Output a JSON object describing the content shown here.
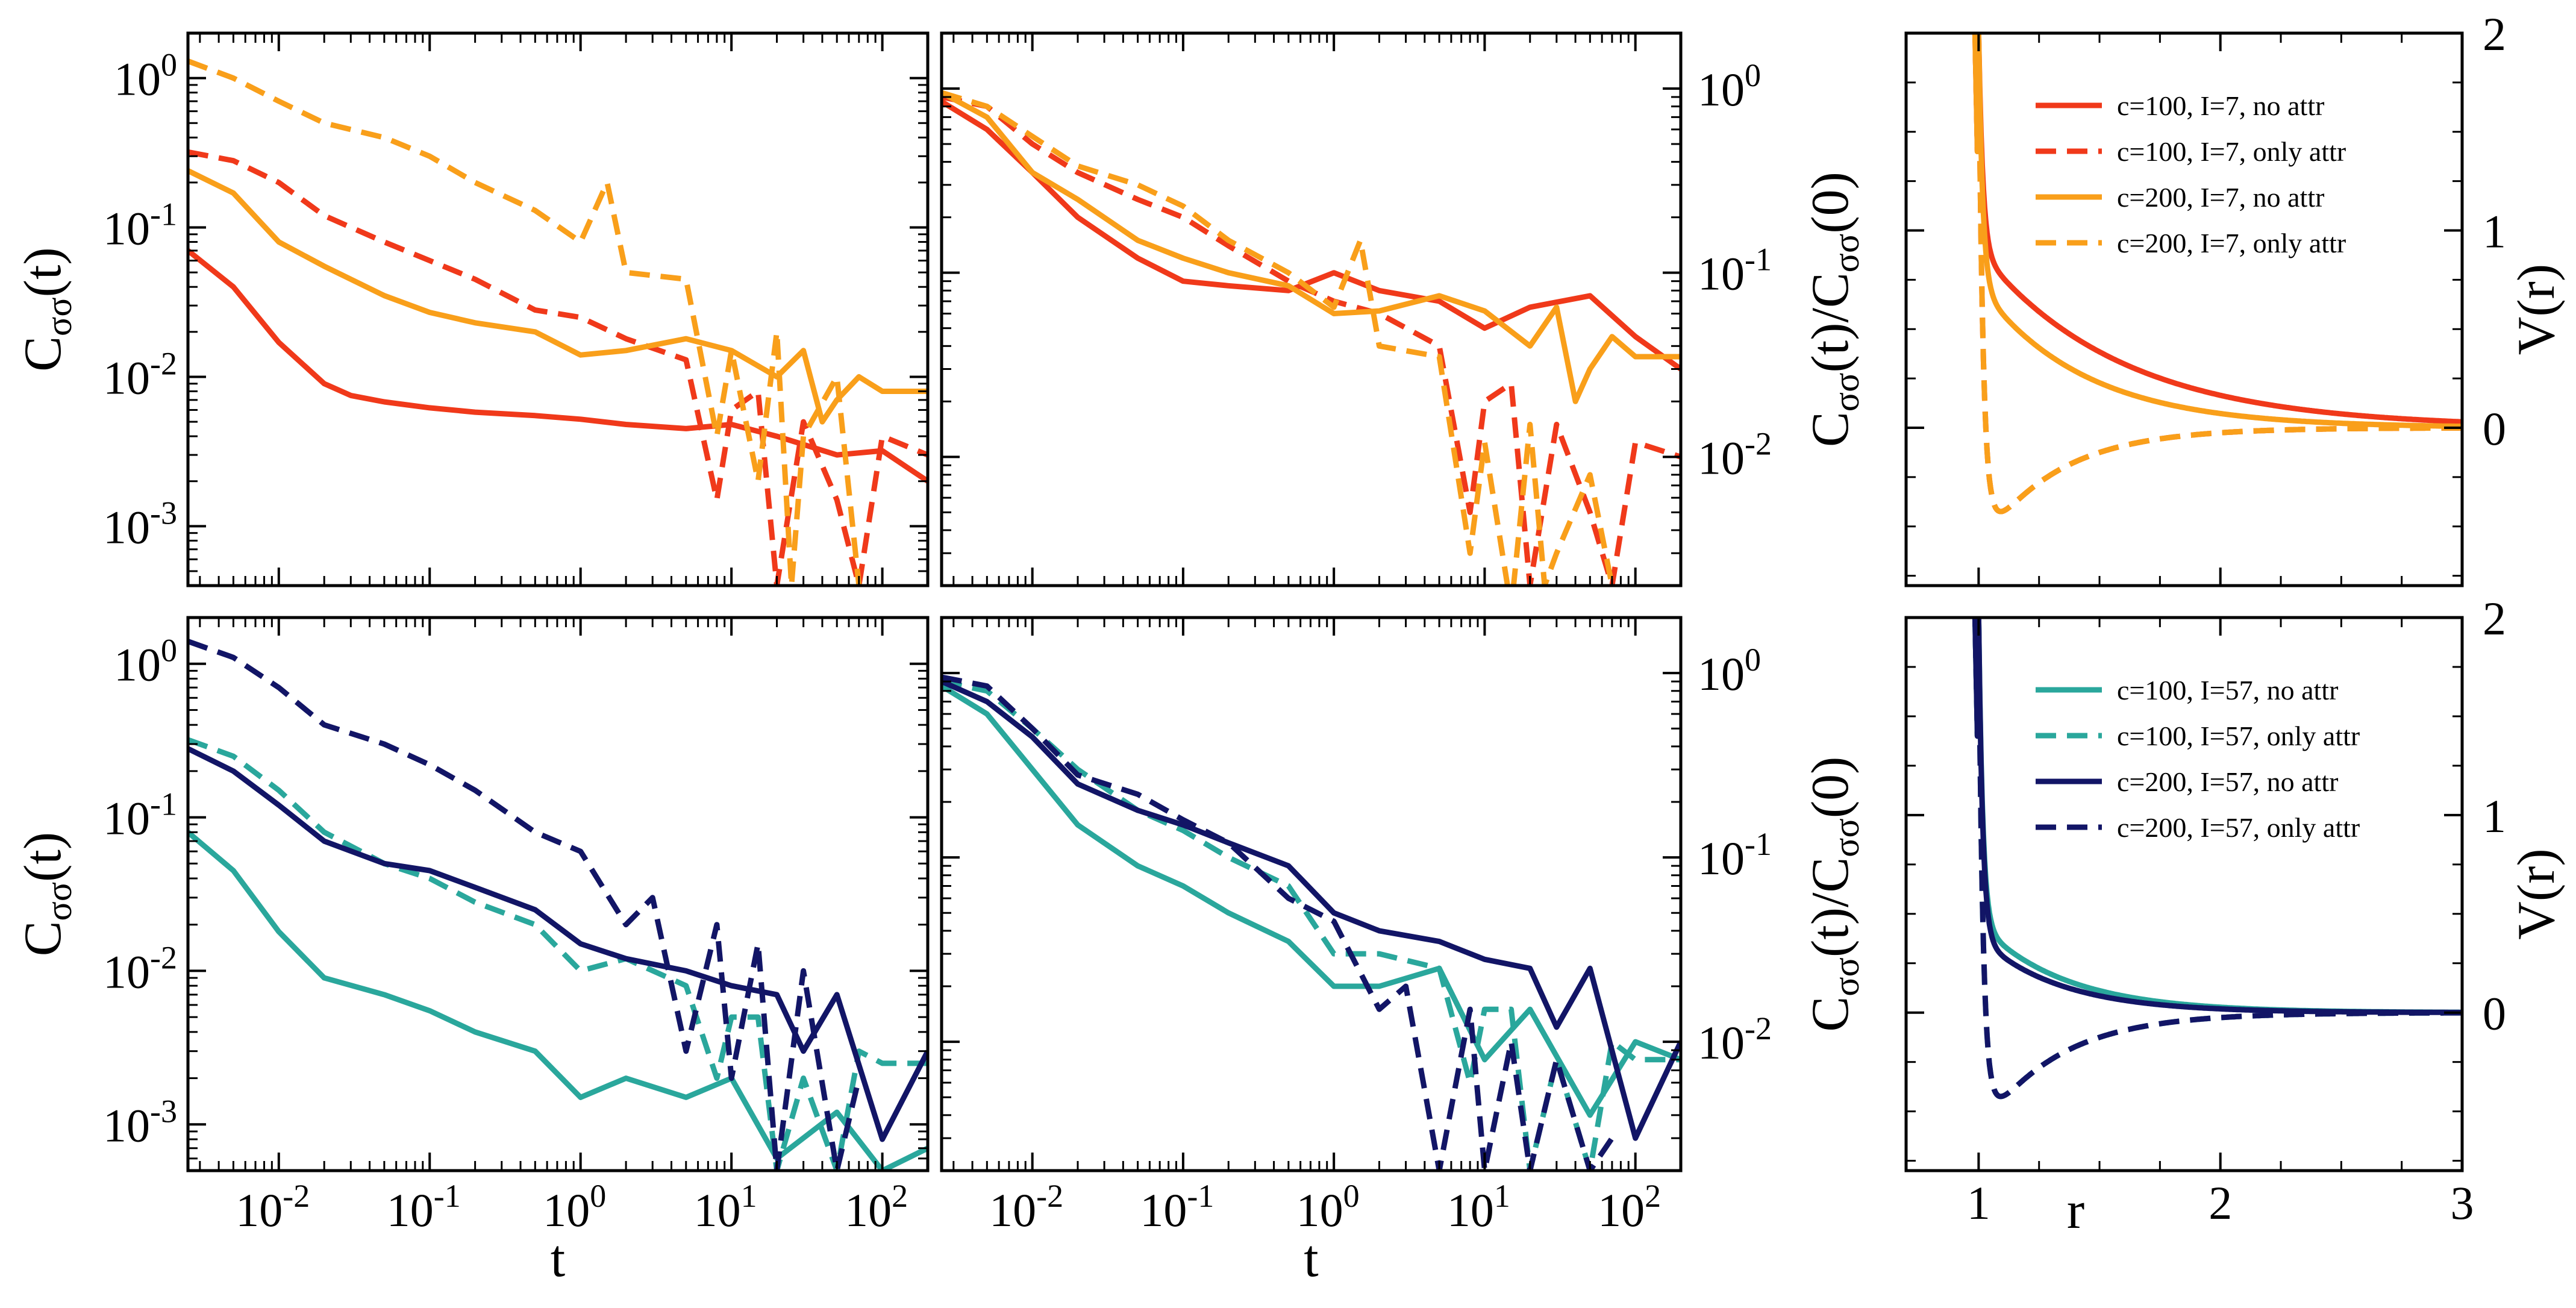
{
  "colors": {
    "c100_I7": "#f0391a",
    "c200_I7": "#f99f1a",
    "c100_I57": "#2aa79c",
    "c200_I57": "#121566"
  },
  "labels": {
    "corr_ylabel": "C",
    "corr_ylabel_sub": "σσ",
    "corr_ylabel_arg": "(t)",
    "norm_ylabel_arg": "(t)/C",
    "norm_ylabel_sub2": "σσ",
    "norm_ylabel_end": "(0)",
    "pot_ylabel": "V(r)",
    "t_xlabel": "t",
    "r_xlabel": "r"
  },
  "chart_data": [
    {
      "id": "top-left",
      "type": "line",
      "xscale": "log",
      "yscale": "log",
      "ylabel": "Cσσ(t)",
      "xlabel": "",
      "xlim": [
        0.0025,
        200
      ],
      "ylim": [
        0.0004,
        2
      ],
      "x_ticklabels": [],
      "y_ticklabels": [
        "10-3",
        "10-2",
        "10-1",
        "100"
      ],
      "series": [
        {
          "key": "c100_I7_noattr",
          "color": "c100_I7",
          "dash": false,
          "x": [
            0.0025,
            0.005,
            0.01,
            0.02,
            0.03,
            0.05,
            0.1,
            0.2,
            0.5,
            1,
            2,
            5,
            10,
            20,
            50,
            100,
            200
          ],
          "y": [
            0.07,
            0.04,
            0.017,
            0.009,
            0.0075,
            0.0068,
            0.0062,
            0.0058,
            0.0055,
            0.0052,
            0.0048,
            0.0045,
            0.0048,
            0.004,
            0.003,
            0.0032,
            0.002
          ]
        },
        {
          "key": "c100_I7_onlyattr",
          "color": "c100_I7",
          "dash": true,
          "x": [
            0.0025,
            0.005,
            0.01,
            0.02,
            0.05,
            0.1,
            0.2,
            0.5,
            1,
            2,
            5,
            8,
            10,
            15,
            20,
            30,
            50,
            70,
            100,
            200
          ],
          "y": [
            0.32,
            0.28,
            0.2,
            0.12,
            0.08,
            0.06,
            0.045,
            0.028,
            0.025,
            0.018,
            0.013,
            0.0015,
            0.006,
            0.008,
            0.0004,
            0.005,
            0.0015,
            0.0004,
            0.004,
            0.003
          ]
        },
        {
          "key": "c200_I7_noattr",
          "color": "c200_I7",
          "dash": false,
          "x": [
            0.0025,
            0.005,
            0.01,
            0.02,
            0.05,
            0.1,
            0.2,
            0.5,
            1,
            2,
            5,
            10,
            20,
            30,
            40,
            50,
            70,
            100,
            200
          ],
          "y": [
            0.24,
            0.17,
            0.08,
            0.055,
            0.035,
            0.027,
            0.023,
            0.02,
            0.014,
            0.015,
            0.018,
            0.015,
            0.01,
            0.015,
            0.005,
            0.007,
            0.01,
            0.008,
            0.008
          ]
        },
        {
          "key": "c200_I7_onlyattr",
          "color": "c200_I7",
          "dash": true,
          "x": [
            0.0025,
            0.005,
            0.01,
            0.02,
            0.05,
            0.1,
            0.2,
            0.5,
            1,
            1.5,
            2,
            5,
            8,
            10,
            15,
            20,
            25,
            30,
            50,
            70
          ],
          "y": [
            1.3,
            1.0,
            0.7,
            0.5,
            0.4,
            0.3,
            0.2,
            0.13,
            0.08,
            0.2,
            0.05,
            0.045,
            0.004,
            0.015,
            0.002,
            0.02,
            0.0004,
            0.004,
            0.01,
            0.0004
          ]
        }
      ]
    },
    {
      "id": "top-middle",
      "type": "line",
      "xscale": "log",
      "yscale": "log",
      "ylabel": "Cσσ(t)/Cσσ(0)",
      "xlabel": "",
      "xlim": [
        0.0025,
        200
      ],
      "ylim": [
        0.002,
        2
      ],
      "x_ticklabels": [],
      "y_ticklabels": [
        "10-2",
        "10-1",
        "100"
      ],
      "series": [
        {
          "key": "c100_I7_noattr",
          "color": "c100_I7",
          "dash": false,
          "x": [
            0.0025,
            0.005,
            0.01,
            0.02,
            0.05,
            0.1,
            0.2,
            0.5,
            1,
            2,
            5,
            10,
            20,
            50,
            100,
            200
          ],
          "y": [
            0.85,
            0.6,
            0.35,
            0.2,
            0.12,
            0.09,
            0.085,
            0.08,
            0.1,
            0.08,
            0.07,
            0.05,
            0.065,
            0.075,
            0.045,
            0.03
          ]
        },
        {
          "key": "c100_I7_onlyattr",
          "color": "c100_I7",
          "dash": true,
          "x": [
            0.0025,
            0.005,
            0.01,
            0.02,
            0.05,
            0.1,
            0.2,
            0.5,
            1,
            2,
            5,
            8,
            10,
            15,
            20,
            30,
            50,
            70,
            100,
            200
          ],
          "y": [
            0.9,
            0.8,
            0.5,
            0.35,
            0.25,
            0.2,
            0.14,
            0.09,
            0.07,
            0.06,
            0.04,
            0.005,
            0.02,
            0.025,
            0.002,
            0.015,
            0.005,
            0.002,
            0.012,
            0.01
          ]
        },
        {
          "key": "c200_I7_noattr",
          "color": "c200_I7",
          "dash": false,
          "x": [
            0.0025,
            0.005,
            0.01,
            0.02,
            0.05,
            0.1,
            0.2,
            0.5,
            1,
            2,
            5,
            10,
            20,
            30,
            40,
            50,
            70,
            100,
            200
          ],
          "y": [
            0.95,
            0.7,
            0.35,
            0.25,
            0.15,
            0.12,
            0.1,
            0.085,
            0.06,
            0.062,
            0.075,
            0.062,
            0.04,
            0.065,
            0.02,
            0.03,
            0.045,
            0.035,
            0.035
          ]
        },
        {
          "key": "c200_I7_onlyattr",
          "color": "c200_I7",
          "dash": true,
          "x": [
            0.0025,
            0.005,
            0.01,
            0.02,
            0.05,
            0.1,
            0.2,
            0.5,
            1,
            1.5,
            2,
            5,
            8,
            10,
            15,
            20,
            25,
            30,
            50,
            70
          ],
          "y": [
            0.95,
            0.8,
            0.55,
            0.38,
            0.3,
            0.23,
            0.15,
            0.1,
            0.065,
            0.15,
            0.04,
            0.035,
            0.003,
            0.012,
            0.0015,
            0.015,
            0.002,
            0.003,
            0.008,
            0.002
          ]
        }
      ]
    },
    {
      "id": "top-right",
      "type": "line",
      "xscale": "linear",
      "yscale": "linear",
      "ylabel": "V(r)",
      "xlabel": "",
      "xlim": [
        0.7,
        3
      ],
      "ylim": [
        -0.8,
        2
      ],
      "x_ticklabels": [],
      "y_ticklabels": [
        "0",
        "1",
        "2"
      ],
      "legend_position": "top-right",
      "legend": [
        "c=100, I=7, no attr",
        "c=100, I=7, only attr",
        "c=200, I=7, no attr",
        "c=200, I=7, only attr"
      ],
      "series": [
        {
          "key": "c100_I7_noattr",
          "color": "c100_I7",
          "dash": false,
          "kind": "repulsive",
          "amp": 0.9,
          "decay": 1.7
        },
        {
          "key": "c100_I7_onlyattr",
          "color": "c100_I7",
          "dash": true,
          "kind": "attractive",
          "amp": 0.62,
          "decay": 3.2
        },
        {
          "key": "c200_I7_noattr",
          "color": "c200_I7",
          "dash": false,
          "kind": "repulsive",
          "amp": 0.72,
          "decay": 2.3
        },
        {
          "key": "c200_I7_onlyattr",
          "color": "c200_I7",
          "dash": true,
          "kind": "attractive",
          "amp": 0.62,
          "decay": 3.2
        }
      ]
    },
    {
      "id": "bottom-left",
      "type": "line",
      "xscale": "log",
      "yscale": "log",
      "ylabel": "Cσσ(t)",
      "xlabel": "t",
      "xlim": [
        0.0025,
        200
      ],
      "ylim": [
        0.0005,
        2
      ],
      "x_ticklabels": [
        "10-2",
        "10-1",
        "100",
        "101",
        "102"
      ],
      "y_ticklabels": [
        "10-3",
        "10-2",
        "10-1",
        "100"
      ],
      "series": [
        {
          "key": "c100_I57_noattr",
          "color": "c100_I57",
          "dash": false,
          "x": [
            0.0025,
            0.005,
            0.01,
            0.02,
            0.05,
            0.1,
            0.2,
            0.5,
            1,
            2,
            5,
            10,
            20,
            50,
            100,
            200
          ],
          "y": [
            0.08,
            0.045,
            0.018,
            0.009,
            0.007,
            0.0055,
            0.004,
            0.003,
            0.0015,
            0.002,
            0.0015,
            0.002,
            0.0006,
            0.0012,
            0.0005,
            0.0007
          ]
        },
        {
          "key": "c100_I57_onlyattr",
          "color": "c100_I57",
          "dash": true,
          "x": [
            0.0025,
            0.005,
            0.01,
            0.02,
            0.05,
            0.1,
            0.2,
            0.5,
            1,
            2,
            5,
            8,
            10,
            15,
            20,
            30,
            50,
            70,
            100,
            200
          ],
          "y": [
            0.32,
            0.25,
            0.15,
            0.08,
            0.05,
            0.04,
            0.028,
            0.02,
            0.01,
            0.012,
            0.008,
            0.002,
            0.005,
            0.005,
            0.0005,
            0.002,
            0.0005,
            0.003,
            0.0025,
            0.0025
          ]
        },
        {
          "key": "c200_I57_noattr",
          "color": "c200_I57",
          "dash": false,
          "x": [
            0.0025,
            0.005,
            0.01,
            0.02,
            0.05,
            0.1,
            0.2,
            0.5,
            1,
            2,
            5,
            10,
            20,
            30,
            50,
            100,
            200
          ],
          "y": [
            0.28,
            0.2,
            0.12,
            0.07,
            0.05,
            0.045,
            0.035,
            0.025,
            0.015,
            0.012,
            0.01,
            0.008,
            0.007,
            0.003,
            0.007,
            0.0008,
            0.003
          ]
        },
        {
          "key": "c200_I57_onlyattr",
          "color": "c200_I57",
          "dash": true,
          "x": [
            0.0025,
            0.005,
            0.01,
            0.02,
            0.05,
            0.1,
            0.2,
            0.5,
            1,
            2,
            3,
            5,
            8,
            10,
            15,
            20,
            30,
            50,
            70
          ],
          "y": [
            1.4,
            1.1,
            0.7,
            0.4,
            0.3,
            0.22,
            0.15,
            0.08,
            0.06,
            0.02,
            0.03,
            0.003,
            0.02,
            0.002,
            0.015,
            0.0005,
            0.01,
            0.0005,
            0.002
          ]
        }
      ]
    },
    {
      "id": "bottom-middle",
      "type": "line",
      "xscale": "log",
      "yscale": "log",
      "ylabel": "Cσσ(t)/Cσσ(0)",
      "xlabel": "t",
      "xlim": [
        0.0025,
        200
      ],
      "ylim": [
        0.002,
        2
      ],
      "x_ticklabels": [
        "10-2",
        "10-1",
        "100",
        "101",
        "102"
      ],
      "y_ticklabels": [
        "10-2",
        "10-1",
        "100"
      ],
      "series": [
        {
          "key": "c100_I57_noattr",
          "color": "c100_I57",
          "dash": false,
          "x": [
            0.0025,
            0.005,
            0.01,
            0.02,
            0.05,
            0.1,
            0.2,
            0.5,
            1,
            2,
            5,
            10,
            20,
            50,
            100,
            200
          ],
          "y": [
            0.85,
            0.6,
            0.3,
            0.15,
            0.09,
            0.07,
            0.05,
            0.035,
            0.02,
            0.02,
            0.025,
            0.008,
            0.015,
            0.004,
            0.01,
            0.008
          ]
        },
        {
          "key": "c100_I57_onlyattr",
          "color": "c100_I57",
          "dash": true,
          "x": [
            0.0025,
            0.005,
            0.01,
            0.02,
            0.05,
            0.1,
            0.2,
            0.5,
            1,
            2,
            5,
            8,
            10,
            15,
            20,
            30,
            50,
            70,
            100,
            200
          ],
          "y": [
            0.9,
            0.8,
            0.5,
            0.3,
            0.18,
            0.14,
            0.1,
            0.07,
            0.03,
            0.03,
            0.025,
            0.006,
            0.015,
            0.015,
            0.002,
            0.008,
            0.002,
            0.01,
            0.008,
            0.008
          ]
        },
        {
          "key": "c200_I57_noattr",
          "color": "c200_I57",
          "dash": false,
          "x": [
            0.0025,
            0.005,
            0.01,
            0.02,
            0.05,
            0.1,
            0.2,
            0.5,
            1,
            2,
            5,
            10,
            20,
            30,
            50,
            100,
            200
          ],
          "y": [
            0.9,
            0.7,
            0.45,
            0.25,
            0.18,
            0.15,
            0.12,
            0.09,
            0.05,
            0.04,
            0.035,
            0.028,
            0.025,
            0.012,
            0.025,
            0.003,
            0.01
          ]
        },
        {
          "key": "c200_I57_onlyattr",
          "color": "c200_I57",
          "dash": true,
          "x": [
            0.0025,
            0.005,
            0.01,
            0.02,
            0.05,
            0.1,
            0.2,
            0.5,
            1,
            2,
            3,
            5,
            8,
            10,
            15,
            20,
            30,
            50,
            70
          ],
          "y": [
            0.95,
            0.85,
            0.5,
            0.28,
            0.22,
            0.16,
            0.12,
            0.06,
            0.045,
            0.015,
            0.02,
            0.002,
            0.015,
            0.002,
            0.01,
            0.002,
            0.008,
            0.002,
            0.003
          ]
        }
      ]
    },
    {
      "id": "bottom-right",
      "type": "line",
      "xscale": "linear",
      "yscale": "linear",
      "ylabel": "V(r)",
      "xlabel": "r",
      "xlim": [
        0.7,
        3
      ],
      "ylim": [
        -0.8,
        2
      ],
      "x_ticklabels": [
        "1",
        "2",
        "3"
      ],
      "y_ticklabels": [
        "0",
        "1",
        "2"
      ],
      "legend_position": "top-right",
      "legend": [
        "c=100, I=57, no attr",
        "c=100, I=57, only attr",
        "c=200, I=57, no attr",
        "c=200, I=57, only attr"
      ],
      "series": [
        {
          "key": "c100_I57_noattr",
          "color": "c100_I57",
          "dash": false,
          "kind": "repulsive",
          "amp": 0.45,
          "decay": 2.8
        },
        {
          "key": "c100_I57_onlyattr",
          "color": "c100_I57",
          "dash": true,
          "kind": "attractive",
          "amp": 0.62,
          "decay": 3.2
        },
        {
          "key": "c200_I57_noattr",
          "color": "c200_I57",
          "dash": false,
          "kind": "repulsive",
          "amp": 0.38,
          "decay": 3.0
        },
        {
          "key": "c200_I57_onlyattr",
          "color": "c200_I57",
          "dash": true,
          "kind": "attractive",
          "amp": 0.62,
          "decay": 3.2
        }
      ]
    }
  ]
}
